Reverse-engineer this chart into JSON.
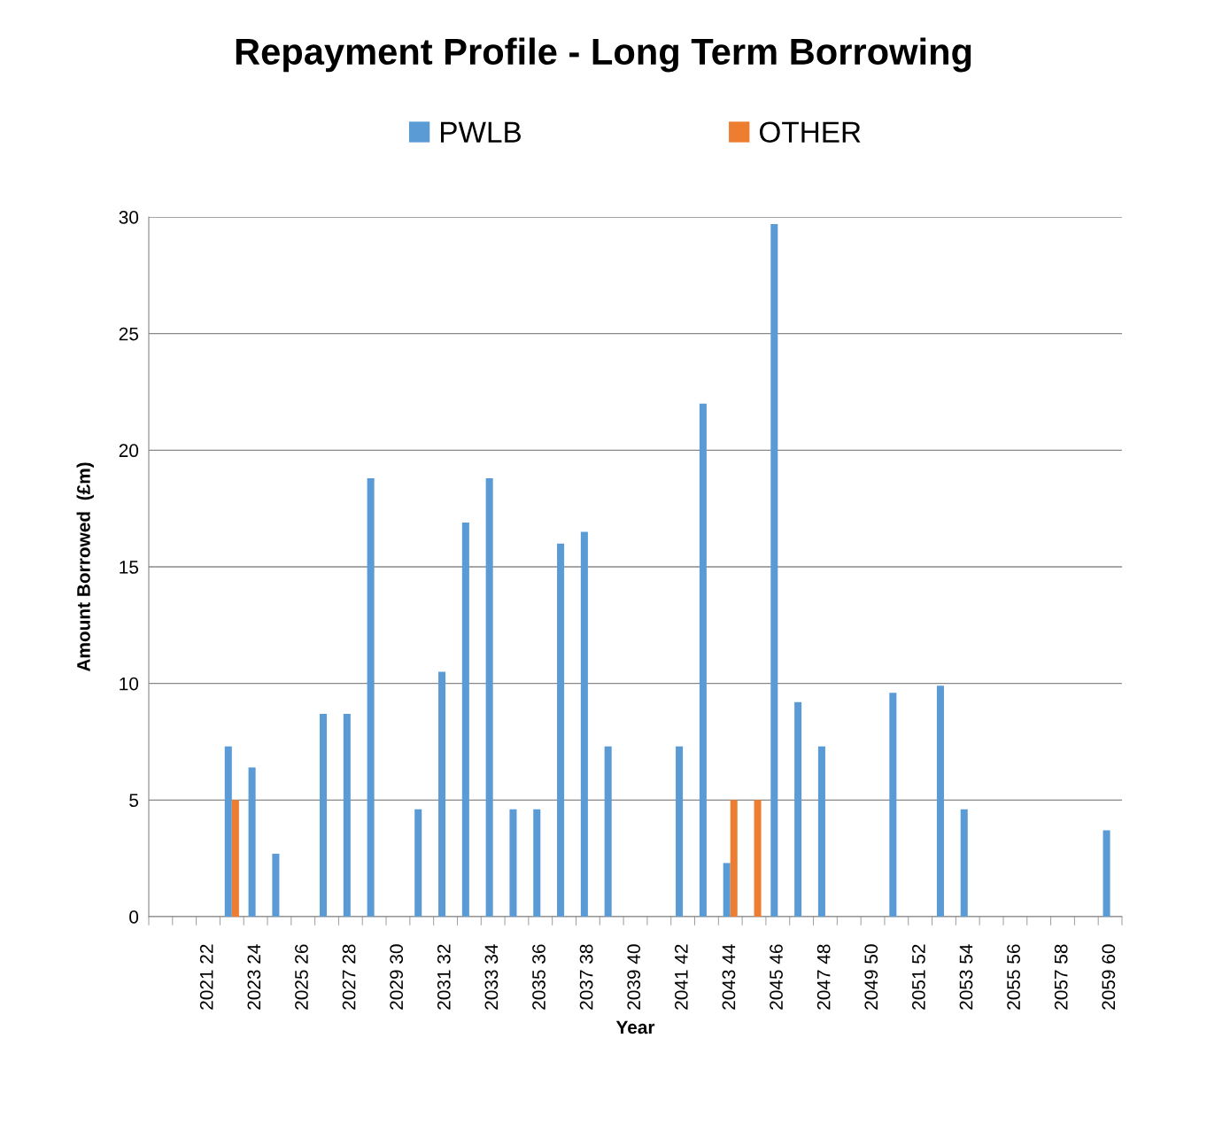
{
  "chart_data": {
    "type": "bar",
    "title": "Repayment Profile - Long Term Borrowing",
    "xlabel": "Year",
    "ylabel": "Amount Borrowed  (£m)",
    "categories": [
      null,
      null,
      "2021 22",
      null,
      "2023 24",
      null,
      "2025 26",
      null,
      "2027 28",
      null,
      "2029 30",
      null,
      "2031 32",
      null,
      "2033 34",
      null,
      "2035 36",
      null,
      "2037 38",
      null,
      "2039 40",
      null,
      "2041 42",
      null,
      "2043 44",
      null,
      "2045 46",
      null,
      "2047 48",
      null,
      "2049 50",
      null,
      "2051 52",
      null,
      "2053 54",
      null,
      "2055 56",
      null,
      "2057 58",
      null,
      "2059 60"
    ],
    "series": [
      {
        "name": "PWLB",
        "color": "#5b9bd5",
        "values": [
          null,
          null,
          null,
          7.3,
          6.4,
          2.7,
          null,
          8.7,
          8.7,
          18.8,
          null,
          4.6,
          10.5,
          16.9,
          18.8,
          4.6,
          4.6,
          16.0,
          16.5,
          7.3,
          null,
          null,
          7.3,
          22.0,
          2.3,
          null,
          29.7,
          9.2,
          7.3,
          null,
          null,
          9.6,
          null,
          9.9,
          4.6,
          null,
          null,
          null,
          null,
          null,
          3.7
        ]
      },
      {
        "name": "OTHER",
        "color": "#ed7d31",
        "values": [
          null,
          null,
          null,
          5,
          null,
          null,
          null,
          null,
          null,
          null,
          null,
          null,
          null,
          null,
          null,
          null,
          null,
          null,
          null,
          null,
          null,
          null,
          null,
          null,
          5,
          5,
          null,
          null,
          null,
          null,
          null,
          null,
          null,
          null,
          null,
          null,
          null,
          null,
          null,
          null,
          null
        ]
      }
    ],
    "ylim": [
      0,
      30
    ],
    "yticks": [
      0,
      5,
      10,
      15,
      20,
      25,
      30
    ],
    "grid": "y",
    "legend": "top"
  }
}
